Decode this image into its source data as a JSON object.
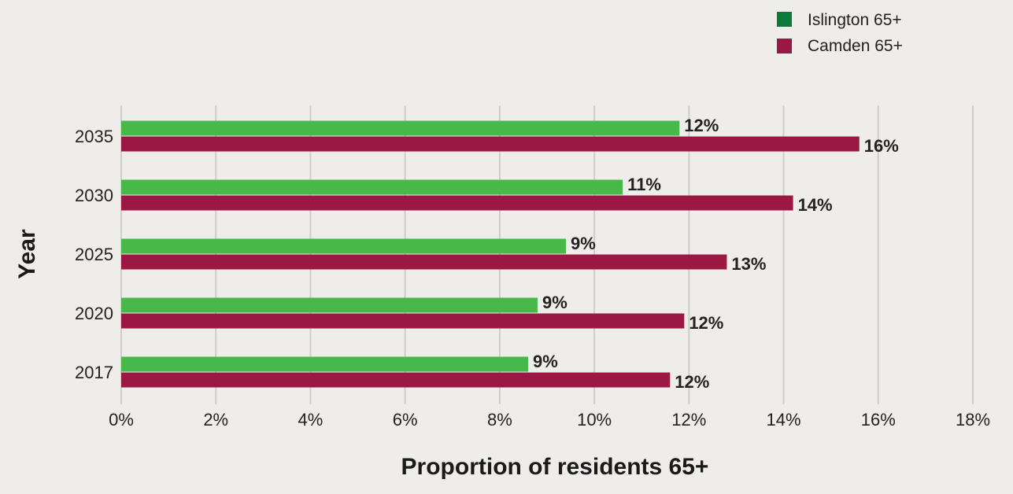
{
  "chart_data": {
    "type": "bar",
    "orientation": "horizontal",
    "categories": [
      "2017",
      "2020",
      "2025",
      "2030",
      "2035"
    ],
    "series": [
      {
        "name": "Islington 65+",
        "color": "#48b84b",
        "values": [
          8.6,
          8.8,
          9.4,
          10.6,
          11.8
        ],
        "labels": [
          "9%",
          "9%",
          "9%",
          "11%",
          "12%"
        ]
      },
      {
        "name": "Camden 65+",
        "color": "#9b1744",
        "values": [
          11.6,
          11.9,
          12.8,
          14.2,
          15.6
        ],
        "labels": [
          "12%",
          "12%",
          "13%",
          "14%",
          "16%"
        ]
      }
    ],
    "xlabel": "Proportion of residents 65+",
    "ylabel": "Year",
    "xlim": [
      0,
      18
    ],
    "x_ticks": [
      "0%",
      "2%",
      "4%",
      "6%",
      "8%",
      "10%",
      "12%",
      "14%",
      "16%",
      "18%"
    ],
    "grid": true,
    "legend_position": "top-right",
    "legend": [
      {
        "label": "Islington 65+",
        "color": "#0b7a3b"
      },
      {
        "label": "Camden 65+",
        "color": "#9b1744"
      }
    ]
  }
}
